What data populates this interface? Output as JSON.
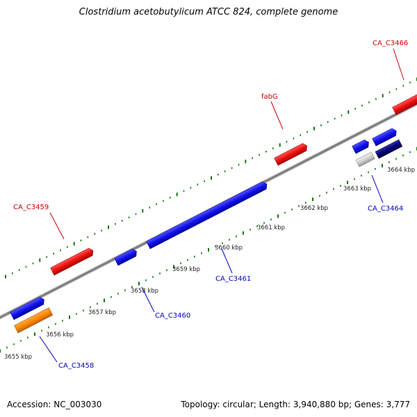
{
  "title": "Clostridium acetobutylicum ATCC 824, complete genome",
  "footer": {
    "accession": "Accession: NC_003030",
    "summary": "Topology: circular; Length: 3,940,880 bp; Genes: 3,777"
  },
  "colors": {
    "forward_label": "#cc0000",
    "reverse_label": "#0000bb",
    "red_gene": "#ee1111",
    "blue_gene": "#1111ee",
    "orange_gene": "#ff8800",
    "gray_gene": "#d0d0d0",
    "navy_gene": "#000077",
    "tick": "#117711",
    "backbone": "#808080"
  },
  "kbp_ticks": [
    {
      "kbp": 3655,
      "label": "3655 kbp"
    },
    {
      "kbp": 3656,
      "label": "3656 kbp"
    },
    {
      "kbp": 3657,
      "label": "3657 kbp"
    },
    {
      "kbp": 3658,
      "label": "3658 kbp"
    },
    {
      "kbp": 3659,
      "label": "3659 kbp"
    },
    {
      "kbp": 3660,
      "label": "3660 kbp"
    },
    {
      "kbp": 3661,
      "label": "3661 kbp"
    },
    {
      "kbp": 3662,
      "label": "3662 kbp"
    },
    {
      "kbp": 3663,
      "label": "3663 kbp"
    },
    {
      "kbp": 3664,
      "label": "3664 kbp"
    }
  ],
  "gene_labels": [
    {
      "name": "CA_C3459",
      "strand": "forward"
    },
    {
      "name": "fabG",
      "strand": "forward"
    },
    {
      "name": "CA_C3466",
      "strand": "forward"
    },
    {
      "name": "CA_C3458",
      "strand": "reverse"
    },
    {
      "name": "CA_C3460",
      "strand": "reverse"
    },
    {
      "name": "CA_C3461",
      "strand": "reverse"
    },
    {
      "name": "CA_C3464",
      "strand": "reverse"
    }
  ]
}
